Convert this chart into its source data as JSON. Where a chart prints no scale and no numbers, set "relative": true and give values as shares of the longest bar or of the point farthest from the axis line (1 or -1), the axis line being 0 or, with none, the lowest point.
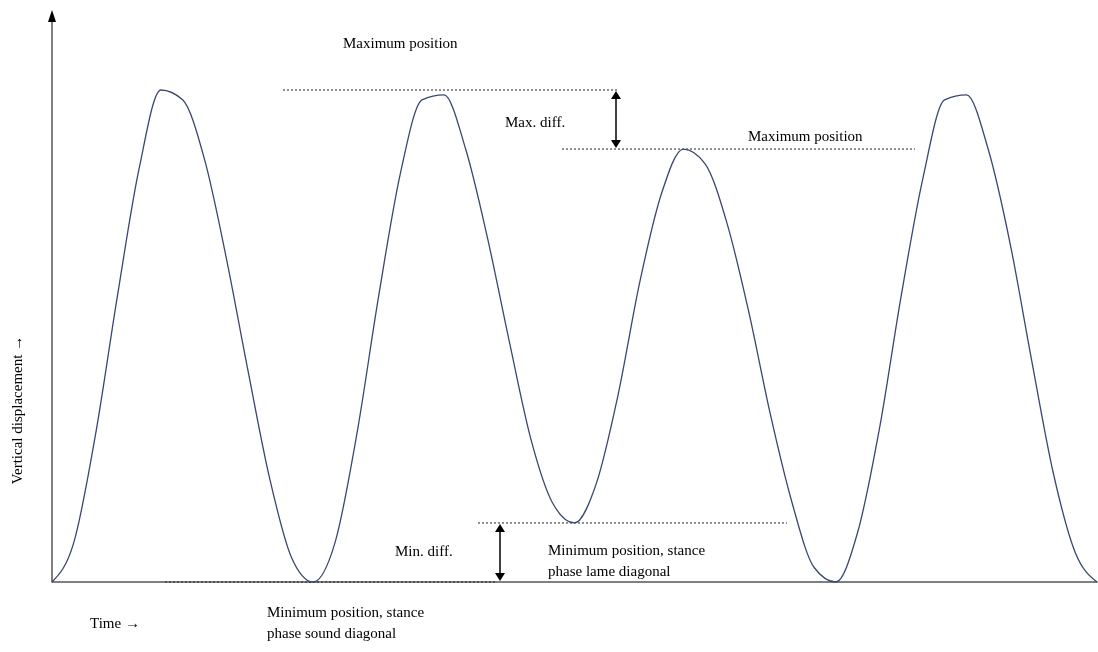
{
  "chart_data": {
    "type": "line",
    "relative": true,
    "xlabel": "Time →",
    "ylabel": "Vertical displacement →",
    "categories": [
      null,
      null,
      null,
      null,
      null,
      null,
      null,
      null,
      null,
      null,
      null,
      null,
      null,
      null,
      null,
      null,
      null,
      null,
      null,
      null,
      null,
      null,
      null,
      null,
      null,
      null,
      null,
      null,
      null,
      null,
      null,
      null,
      null,
      null,
      null,
      null,
      null,
      null,
      null,
      null,
      null,
      null,
      null,
      null,
      null,
      null,
      null,
      null,
      null
    ],
    "series": [
      {
        "color": "#3a4775",
        "values": [
          0,
          0.08,
          0.3,
          0.58,
          0.84,
          1,
          0.98,
          0.86,
          0.66,
          0.43,
          0.21,
          0.05,
          0,
          0.08,
          0.3,
          0.58,
          0.83,
          0.98,
          0.99,
          0.88,
          0.7,
          0.49,
          0.29,
          0.16,
          0.12,
          0.2,
          0.38,
          0.61,
          0.79,
          0.88,
          0.85,
          0.73,
          0.55,
          0.34,
          0.16,
          0.03,
          0,
          0.1,
          0.31,
          0.58,
          0.82,
          0.98,
          0.99,
          0.88,
          0.69,
          0.45,
          0.22,
          0.06,
          0
        ]
      }
    ],
    "ref_lines": [
      {
        "axis": "y",
        "value": 1,
        "label": "Maximum position",
        "line_style": "dotted"
      },
      {
        "axis": "y",
        "value": 0.88,
        "label": "Maximum position",
        "line_style": "dotted"
      },
      {
        "axis": "y",
        "value": 0.12,
        "label": "Minimum position, stance phase lame diagonal",
        "line_style": "dotted"
      },
      {
        "axis": "y",
        "value": 0,
        "label": "Minimum position, stance phase sound diagonal",
        "line_style": "dotted"
      }
    ],
    "annotations": [
      "Max. diff.",
      "Min. diff."
    ],
    "line_style": "solid"
  }
}
